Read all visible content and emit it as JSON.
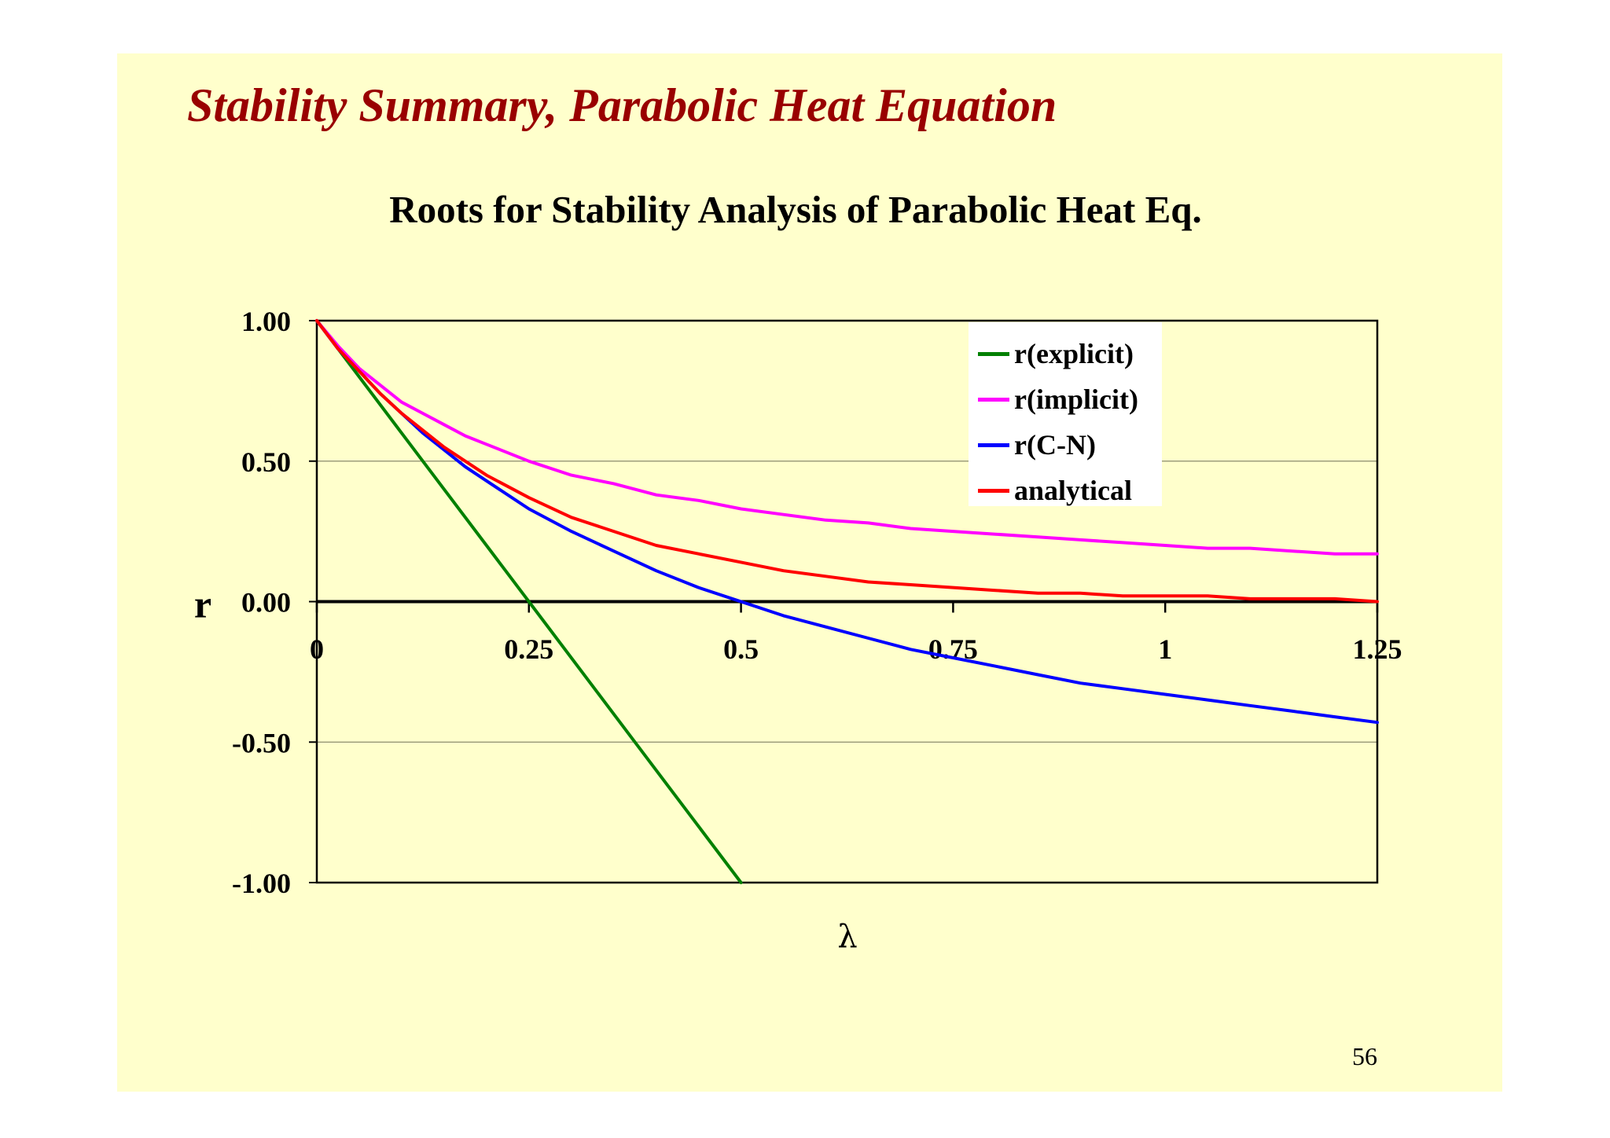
{
  "slide": {
    "title": "Stability Summary, Parabolic Heat Equation",
    "page_number": "56"
  },
  "chart_data": {
    "type": "line",
    "title": "Roots for Stability Analysis of Parabolic Heat Eq.",
    "xlabel": "λ",
    "ylabel": "r",
    "xlim": [
      0,
      1.25
    ],
    "ylim": [
      -1.0,
      1.0
    ],
    "x_ticks": [
      "0",
      "0.25",
      "0.5",
      "0.75",
      "1",
      "1.25"
    ],
    "y_ticks": [
      "1.00",
      "0.50",
      "0.00",
      "-0.50",
      "-1.00"
    ],
    "gridlines": "horizontal major",
    "legend": {
      "placement": "top-right"
    },
    "x": [
      0,
      0.025,
      0.05,
      0.075,
      0.1,
      0.125,
      0.15,
      0.175,
      0.2,
      0.25,
      0.3,
      0.35,
      0.4,
      0.45,
      0.5,
      0.55,
      0.6,
      0.65,
      0.7,
      0.75,
      0.8,
      0.85,
      0.9,
      0.95,
      1.0,
      1.05,
      1.1,
      1.15,
      1.2,
      1.25
    ],
    "series": [
      {
        "name": "r(explicit)",
        "color": "#008000",
        "x": [
          0,
          0.125,
          0.25,
          0.375,
          0.5
        ],
        "values": [
          1.0,
          0.5,
          0.0,
          -0.5,
          -1.0
        ]
      },
      {
        "name": "r(implicit)",
        "color": "#ff00ff",
        "values": [
          1.0,
          0.91,
          0.83,
          0.77,
          0.71,
          0.67,
          0.63,
          0.59,
          0.56,
          0.5,
          0.45,
          0.42,
          0.38,
          0.36,
          0.33,
          0.31,
          0.29,
          0.28,
          0.26,
          0.25,
          0.24,
          0.23,
          0.22,
          0.21,
          0.2,
          0.19,
          0.19,
          0.18,
          0.17,
          0.17
        ]
      },
      {
        "name": "r(C-N)",
        "color": "#0000ff",
        "values": [
          1.0,
          0.9,
          0.82,
          0.74,
          0.67,
          0.6,
          0.54,
          0.48,
          0.43,
          0.33,
          0.25,
          0.18,
          0.11,
          0.05,
          0.0,
          -0.05,
          -0.09,
          -0.13,
          -0.17,
          -0.2,
          -0.23,
          -0.26,
          -0.29,
          -0.31,
          -0.33,
          -0.35,
          -0.37,
          -0.39,
          -0.41,
          -0.43
        ]
      },
      {
        "name": "analytical",
        "color": "#ff0000",
        "values": [
          1.0,
          0.9,
          0.82,
          0.74,
          0.67,
          0.61,
          0.55,
          0.5,
          0.45,
          0.37,
          0.3,
          0.25,
          0.2,
          0.17,
          0.14,
          0.11,
          0.09,
          0.07,
          0.06,
          0.05,
          0.04,
          0.03,
          0.03,
          0.02,
          0.02,
          0.02,
          0.01,
          0.01,
          0.01,
          0.0
        ]
      }
    ]
  }
}
